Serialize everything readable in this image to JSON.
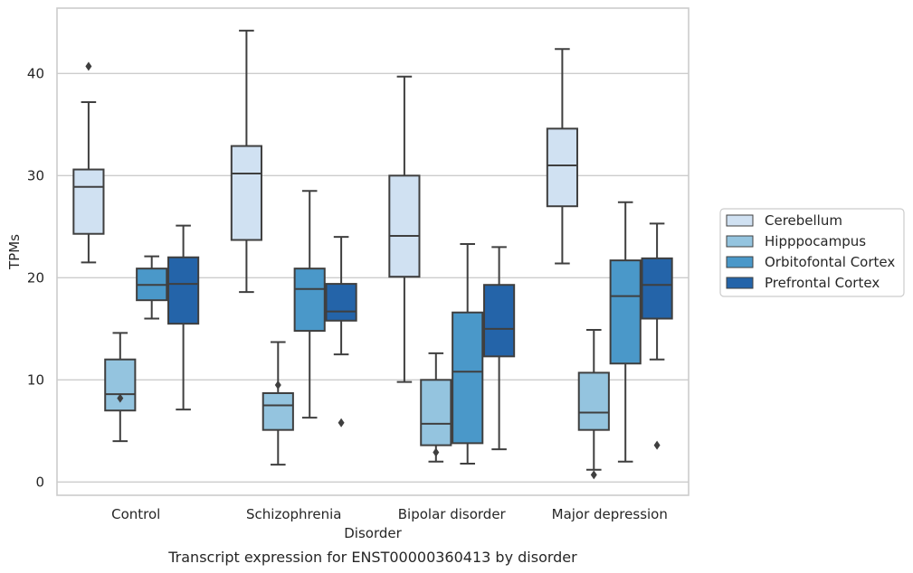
{
  "caption": "Transcript expression for ENST00000360413 by disorder",
  "chart_data": {
    "type": "box",
    "title": "",
    "xlabel": "Disorder",
    "ylabel": "TPMs",
    "categories": [
      "Control",
      "Schizophrenia",
      "Bipolar disorder",
      "Major depression"
    ],
    "yticks": [
      0,
      10,
      20,
      30,
      40
    ],
    "ylim": [
      -1.3,
      46.4
    ],
    "grid": "horizontal",
    "legend_position": "right",
    "series": [
      {
        "name": "Cerebellum",
        "color": "#d0e1f2",
        "boxes": [
          {
            "whisker_low": 21.5,
            "q1": 24.3,
            "median": 28.9,
            "q3": 30.6,
            "whisker_high": 37.2,
            "outliers": [
              40.7
            ]
          },
          {
            "whisker_low": 18.6,
            "q1": 23.7,
            "median": 30.2,
            "q3": 32.9,
            "whisker_high": 44.2,
            "outliers": []
          },
          {
            "whisker_low": 9.8,
            "q1": 20.1,
            "median": 24.1,
            "q3": 30.0,
            "whisker_high": 39.7,
            "outliers": []
          },
          {
            "whisker_low": 21.4,
            "q1": 27.0,
            "median": 31.0,
            "q3": 34.6,
            "whisker_high": 42.4,
            "outliers": []
          }
        ]
      },
      {
        "name": "Hipppocampus",
        "color": "#94c4df",
        "boxes": [
          {
            "whisker_low": 4.0,
            "q1": 7.0,
            "median": 8.6,
            "q3": 12.0,
            "whisker_high": 14.6,
            "outliers": [
              8.2
            ]
          },
          {
            "whisker_low": 1.7,
            "q1": 5.1,
            "median": 7.5,
            "q3": 8.7,
            "whisker_high": 13.7,
            "outliers": [
              9.5
            ]
          },
          {
            "whisker_low": 2.0,
            "q1": 3.6,
            "median": 5.7,
            "q3": 10.0,
            "whisker_high": 12.6,
            "outliers": [
              2.9
            ]
          },
          {
            "whisker_low": 1.2,
            "q1": 5.1,
            "median": 6.8,
            "q3": 10.7,
            "whisker_high": 14.9,
            "outliers": [
              0.7
            ]
          }
        ]
      },
      {
        "name": "Orbitofontal Cortex",
        "color": "#4a98c9",
        "boxes": [
          {
            "whisker_low": 16.0,
            "q1": 17.8,
            "median": 19.3,
            "q3": 20.9,
            "whisker_high": 22.1,
            "outliers": []
          },
          {
            "whisker_low": 6.3,
            "q1": 14.8,
            "median": 18.9,
            "q3": 20.9,
            "whisker_high": 28.5,
            "outliers": []
          },
          {
            "whisker_low": 1.8,
            "q1": 3.8,
            "median": 10.8,
            "q3": 16.6,
            "whisker_high": 23.3,
            "outliers": []
          },
          {
            "whisker_low": 2.0,
            "q1": 11.6,
            "median": 18.2,
            "q3": 21.7,
            "whisker_high": 27.4,
            "outliers": []
          }
        ]
      },
      {
        "name": "Prefrontal Cortex",
        "color": "#2464a9",
        "boxes": [
          {
            "whisker_low": 7.1,
            "q1": 15.5,
            "median": 19.4,
            "q3": 22.0,
            "whisker_high": 25.1,
            "outliers": []
          },
          {
            "whisker_low": 12.5,
            "q1": 15.8,
            "median": 16.7,
            "q3": 19.4,
            "whisker_high": 24.0,
            "outliers": [
              5.8
            ]
          },
          {
            "whisker_low": 3.2,
            "q1": 12.3,
            "median": 15.0,
            "q3": 19.3,
            "whisker_high": 23.0,
            "outliers": []
          },
          {
            "whisker_low": 12.0,
            "q1": 16.0,
            "median": 19.3,
            "q3": 21.9,
            "whisker_high": 25.3,
            "outliers": [
              3.6
            ]
          }
        ]
      }
    ]
  }
}
